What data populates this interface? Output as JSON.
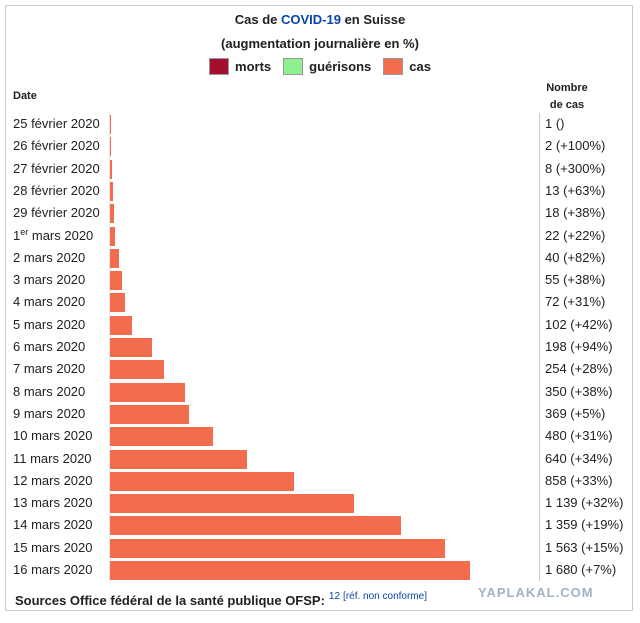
{
  "title": {
    "prefix": "Cas de ",
    "link": "COVID-19",
    "suffix": " en Suisse",
    "subtitle": "(augmentation journalière en %)"
  },
  "legend": [
    {
      "label": "morts",
      "color": "#a50f2d"
    },
    {
      "label": "guérisons",
      "color": "#8ef08e"
    },
    {
      "label": "cas",
      "color": "#f26d4e"
    }
  ],
  "headers": {
    "date": "Date",
    "count_line1": "Nombre",
    "count_line2": "de cas"
  },
  "source": {
    "text": "Sources Office fédéral de la santé publique OFSP:",
    "sup": "12",
    "ref": "[réf. non conforme]"
  },
  "watermark": "YAPLAKAL.COM",
  "chart_data": {
    "type": "bar",
    "orientation": "horizontal",
    "title": "Cas de COVID-19 en Suisse",
    "subtitle": "(augmentation journalière en %)",
    "xlim": [
      0,
      1680
    ],
    "categories": [
      {
        "day": "25 février 2020",
        "sup": ""
      },
      {
        "day": "26 février 2020",
        "sup": ""
      },
      {
        "day": "27 février 2020",
        "sup": ""
      },
      {
        "day": "28 février 2020",
        "sup": ""
      },
      {
        "day": "29 février 2020",
        "sup": ""
      },
      {
        "day": "1",
        "sup": "er",
        "rest": " mars 2020"
      },
      {
        "day": "2 mars 2020",
        "sup": ""
      },
      {
        "day": "3 mars 2020",
        "sup": ""
      },
      {
        "day": "4 mars 2020",
        "sup": ""
      },
      {
        "day": "5 mars 2020",
        "sup": ""
      },
      {
        "day": "6 mars 2020",
        "sup": ""
      },
      {
        "day": "7 mars 2020",
        "sup": ""
      },
      {
        "day": "8 mars 2020",
        "sup": ""
      },
      {
        "day": "9 mars 2020",
        "sup": ""
      },
      {
        "day": "10 mars 2020",
        "sup": ""
      },
      {
        "day": "11 mars 2020",
        "sup": ""
      },
      {
        "day": "12 mars 2020",
        "sup": ""
      },
      {
        "day": "13 mars 2020",
        "sup": ""
      },
      {
        "day": "14 mars 2020",
        "sup": ""
      },
      {
        "day": "15 mars 2020",
        "sup": ""
      },
      {
        "day": "16 mars 2020",
        "sup": ""
      }
    ],
    "series": [
      {
        "name": "cas",
        "color": "#f26d4e",
        "values": [
          1,
          2,
          8,
          13,
          18,
          22,
          40,
          55,
          72,
          102,
          198,
          254,
          350,
          369,
          480,
          640,
          858,
          1139,
          1359,
          1563,
          1680
        ]
      }
    ],
    "labels": [
      "1 ()",
      "2 (+100%)",
      "8 (+300%)",
      "13 (+63%)",
      "18 (+38%)",
      "22 (+22%)",
      "40 (+82%)",
      "55 (+38%)",
      "72 (+31%)",
      "102 (+42%)",
      "198 (+94%)",
      "254 (+28%)",
      "350 (+38%)",
      "369 (+5%)",
      "480 (+31%)",
      "640 (+34%)",
      "858 (+33%)",
      "1 139 (+32%)",
      "1 359 (+19%)",
      "1 563 (+15%)",
      "1 680 (+7%)"
    ]
  }
}
